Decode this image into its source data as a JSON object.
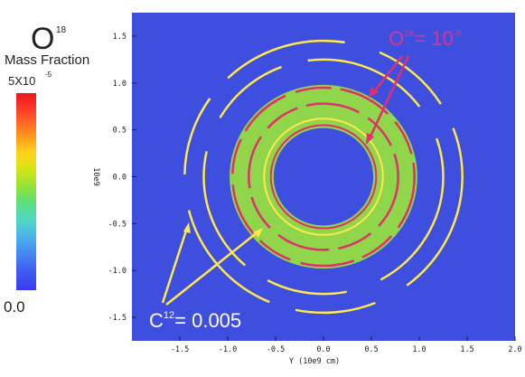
{
  "colorbar": {
    "title_main": "O",
    "title_sup": "18",
    "subtitle": "Mass Fraction",
    "max_label": "5X10",
    "max_exp": "-5",
    "min_label": "0.0"
  },
  "annotations": {
    "o18_base": "O",
    "o18_sup": "18",
    "o18_rest": "= 10",
    "o18_exp": "-8",
    "c12_base": "C",
    "c12_sup": "12",
    "c12_rest": "= 0.005"
  },
  "chart_data": {
    "type": "heatmap",
    "title": "",
    "xlabel": "Y (10e9 cm)",
    "ylabel": "10e9",
    "xlim": [
      -2.0,
      2.0
    ],
    "ylim": [
      -1.75,
      1.75
    ],
    "x_ticks": [
      -1.5,
      -1.0,
      -0.5,
      0.0,
      0.5,
      1.0,
      1.5,
      2.0
    ],
    "y_ticks": [
      -1.5,
      -1.0,
      -0.5,
      0.0,
      0.5,
      1.0,
      1.5
    ],
    "x_tick_labels": [
      "-1.5",
      "-1.0",
      "-0.5",
      "0.0",
      "0.5",
      "1.0",
      "1.5",
      "2.0"
    ],
    "y_tick_labels": [
      "-1.5",
      "-1.0",
      "-0.5",
      "0.0",
      "0.5",
      "1.0",
      "1.5"
    ],
    "colorbar_range": [
      0.0,
      5e-05
    ],
    "background_color": "#3e4fe0",
    "ring": {
      "center": [
        0.0,
        0.0
      ],
      "inner_radius": 0.52,
      "outer_radius": 0.98,
      "fill_color": "#8fd64a"
    },
    "contours": [
      {
        "label": "O18 = 1e-8",
        "color": "#e0306a",
        "radii": [
          0.55,
          0.78,
          0.95
        ]
      },
      {
        "label": "C12 = 0.005",
        "color": "#ffe84a",
        "radii": [
          0.62,
          1.25,
          1.45
        ]
      }
    ]
  }
}
